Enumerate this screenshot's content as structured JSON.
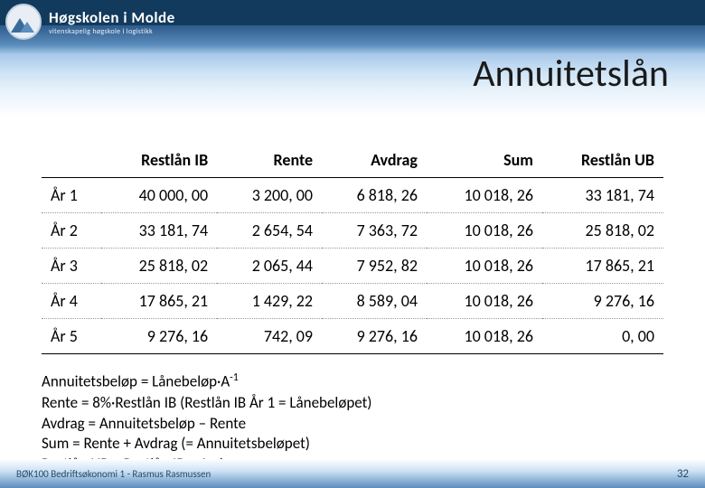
{
  "logo": {
    "main": "Høgskolen i Molde",
    "sub": "vitenskapelig høgskole i logistikk"
  },
  "title": "Annuitetslån",
  "table": {
    "columns": [
      "",
      "Restlån IB",
      "Rente",
      "Avdrag",
      "Sum",
      "Restlån UB"
    ],
    "rows": [
      [
        "År 1",
        "40 000, 00",
        "3 200, 00",
        "6 818, 26",
        "10 018, 26",
        "33 181, 74"
      ],
      [
        "År 2",
        "33 181, 74",
        "2 654, 54",
        "7 363, 72",
        "10 018, 26",
        "25 818, 02"
      ],
      [
        "År 3",
        "25 818, 02",
        "2 065, 44",
        "7 952, 82",
        "10 018, 26",
        "17 865, 21"
      ],
      [
        "År 4",
        "17 865, 21",
        "1 429, 22",
        "8 589, 04",
        "10 018, 26",
        "9 276, 16"
      ],
      [
        "År 5",
        "9 276, 16",
        "742, 09",
        "9 276, 16",
        "10 018, 26",
        "0, 00"
      ]
    ],
    "col_align": [
      "left",
      "right",
      "right",
      "right",
      "right",
      "right"
    ],
    "header_border_color": "#000000",
    "row_border_style": "dotted",
    "font_size_pt": 14
  },
  "formulas": {
    "line1_pre": "Annuitetsbeløp = Lånebeløp·A",
    "line1_sup": "-1",
    "line2": "Rente = 8%·Restlån IB (Restlån IB År 1 = Lånebeløpet)",
    "line3": "Avdrag = Annuitetsbeløp – Rente",
    "line4": "Sum = Rente + Avdrag (= Annuitetsbeløpet)",
    "line5": "Restlån UB = Restlån IB – Avdrag"
  },
  "footer": {
    "text": "BØK100 Bedriftsøkonomi 1 - Rasmus Rasmussen",
    "slide": "32"
  },
  "colors": {
    "header_dark": "#123a5c",
    "header_mid": "#5b8dbd",
    "header_light": "#cde3f5",
    "text": "#000000",
    "footer_text": "#2a4a6a"
  }
}
